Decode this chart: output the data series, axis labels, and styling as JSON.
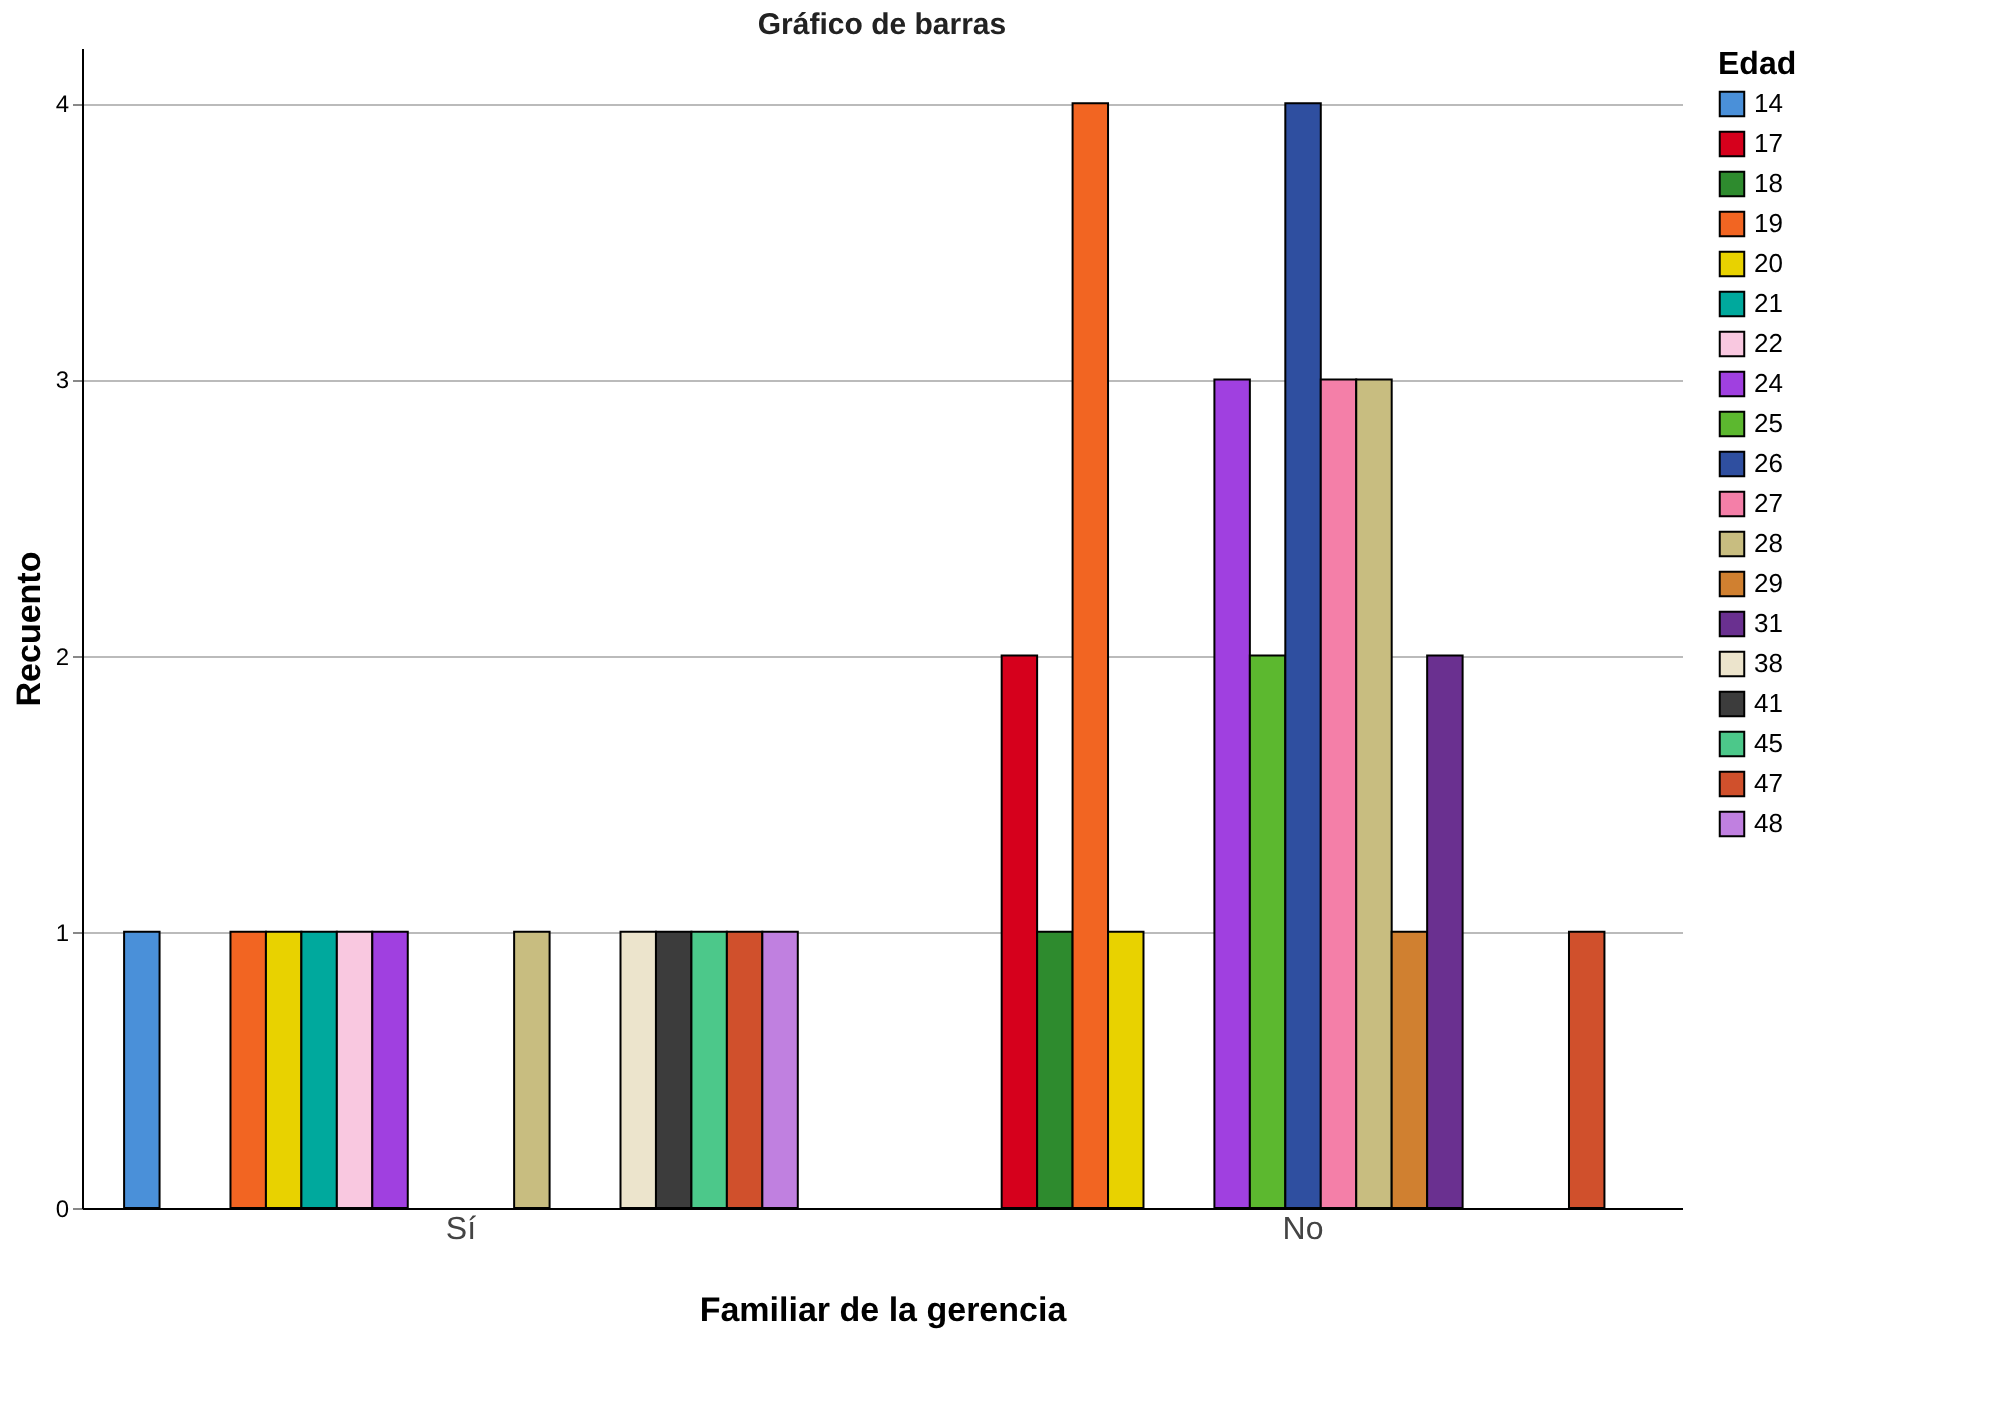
{
  "chart_data": {
    "type": "bar",
    "title": "Gráfico de barras",
    "xlabel": "Familiar de la gerencia",
    "ylabel": "Recuento",
    "legend_title": "Edad",
    "categories": [
      "Sí",
      "No"
    ],
    "ylim": [
      0,
      4.2
    ],
    "yticks": [
      0,
      1,
      2,
      3,
      4
    ],
    "grid": "y",
    "legend": "right",
    "series": [
      {
        "name": "14",
        "color": "#4a90d9",
        "values": [
          1,
          null
        ]
      },
      {
        "name": "17",
        "color": "#d6001c",
        "values": [
          null,
          2
        ]
      },
      {
        "name": "18",
        "color": "#2e8b2e",
        "values": [
          null,
          1
        ]
      },
      {
        "name": "19",
        "color": "#f26522",
        "values": [
          1,
          4
        ]
      },
      {
        "name": "20",
        "color": "#e8d200",
        "values": [
          1,
          1
        ]
      },
      {
        "name": "21",
        "color": "#00a99d",
        "values": [
          1,
          null
        ]
      },
      {
        "name": "22",
        "color": "#f9c8e0",
        "values": [
          1,
          null
        ]
      },
      {
        "name": "24",
        "color": "#a040e0",
        "values": [
          1,
          3
        ]
      },
      {
        "name": "25",
        "color": "#5cb82f",
        "values": [
          null,
          2
        ]
      },
      {
        "name": "26",
        "color": "#2f4fa0",
        "values": [
          null,
          4
        ]
      },
      {
        "name": "27",
        "color": "#f47fa8",
        "values": [
          null,
          3
        ]
      },
      {
        "name": "28",
        "color": "#c8bd80",
        "values": [
          1,
          3
        ]
      },
      {
        "name": "29",
        "color": "#d08030",
        "values": [
          null,
          1
        ]
      },
      {
        "name": "31",
        "color": "#6a3090",
        "values": [
          null,
          2
        ]
      },
      {
        "name": "38",
        "color": "#ece4cc",
        "values": [
          1,
          null
        ]
      },
      {
        "name": "41",
        "color": "#3c3c3c",
        "values": [
          1,
          null
        ]
      },
      {
        "name": "45",
        "color": "#4cc88a",
        "values": [
          1,
          null
        ]
      },
      {
        "name": "47",
        "color": "#d0502c",
        "values": [
          1,
          1
        ]
      },
      {
        "name": "48",
        "color": "#c080e0",
        "values": [
          1,
          null
        ]
      }
    ]
  }
}
